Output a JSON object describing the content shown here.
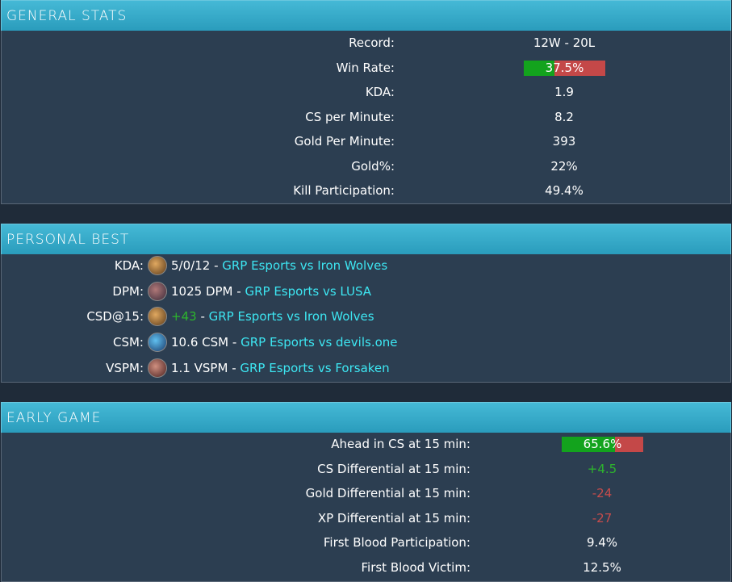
{
  "panels": [
    {
      "title": "GENERAL STATS",
      "rows": [
        {
          "label": "Record:",
          "value": "12W - 20L"
        },
        {
          "label": "Win Rate:",
          "value": 37.5,
          "value_label": "37.5%"
        },
        {
          "label": "KDA:",
          "value": "1.9"
        },
        {
          "label": "CS per Minute:",
          "value": "8.2"
        },
        {
          "label": "Gold Per Minute:",
          "value": "393"
        },
        {
          "label": "Gold%:",
          "value": "22%"
        },
        {
          "label": "Kill Participation:",
          "value": "49.4%"
        }
      ]
    },
    {
      "title": "PERSONAL BEST",
      "rows": [
        {
          "label": "KDA:",
          "value": "5/0/12",
          "separator": "-",
          "link": "GRP Esports vs Iron Wolves"
        },
        {
          "label": "DPM:",
          "value": "1025 DPM",
          "separator": "-",
          "link": "GRP Esports vs LUSA"
        },
        {
          "label": "CSD@15:",
          "value": "+43",
          "color": "#2db52d",
          "separator": "-",
          "link": "GRP Esports vs Iron Wolves"
        },
        {
          "label": "CSM:",
          "value": "10.6 CSM",
          "separator": "-",
          "link": "GRP Esports vs devils.one"
        },
        {
          "label": "VSPM:",
          "value": "1.1 VSPM",
          "separator": "-",
          "link": "GRP Esports vs Forsaken"
        }
      ]
    },
    {
      "title": "EARLY GAME",
      "rows": [
        {
          "label": "Ahead in CS at 15 min:",
          "value": 65.6,
          "value_label": "65.6%"
        },
        {
          "label": "CS Differential at 15 min:",
          "value": "+4.5",
          "color": "#2db52d"
        },
        {
          "label": "Gold Differential at 15 min:",
          "value": "-24",
          "color": "#c84c4c"
        },
        {
          "label": "XP Differential at 15 min:",
          "value": "-27",
          "color": "#c84c4c"
        },
        {
          "label": "First Blood Participation:",
          "value": "9.4%"
        },
        {
          "label": "First Blood Victim:",
          "value": "12.5%"
        }
      ]
    }
  ]
}
